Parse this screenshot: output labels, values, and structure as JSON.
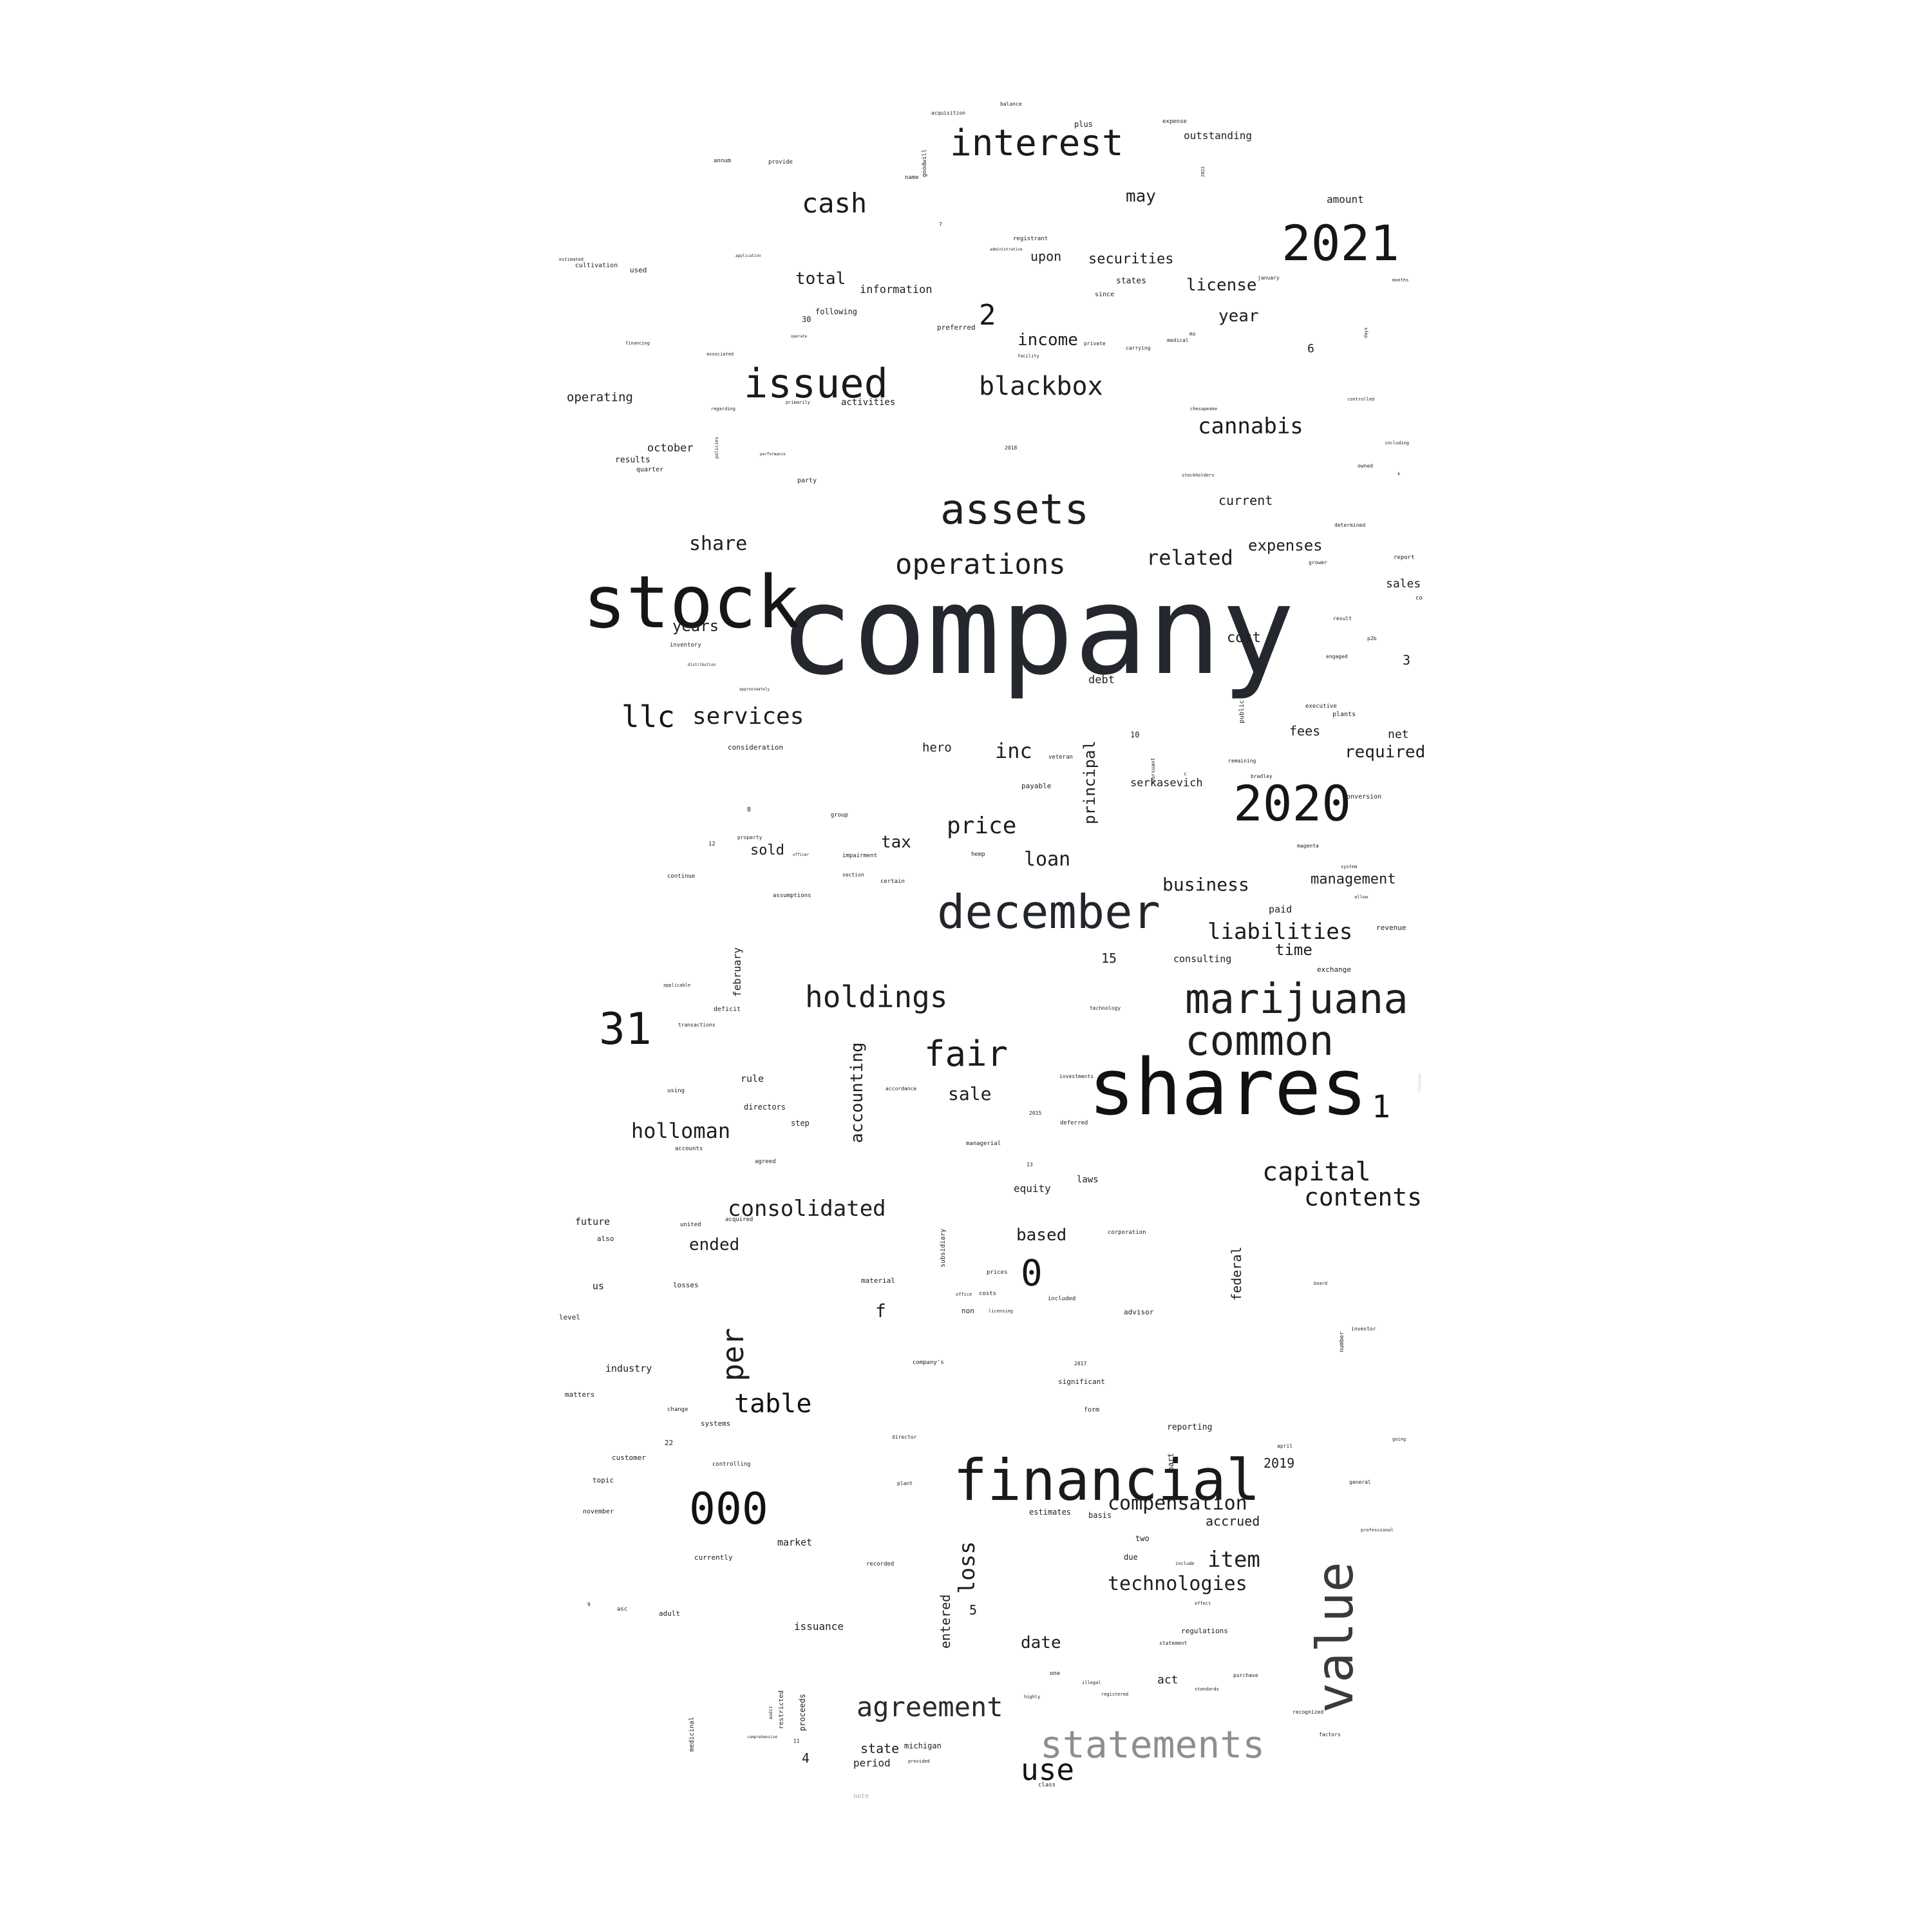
{
  "word_cloud": {
    "words": [
      {
        "text": "company"
      },
      {
        "text": "shares"
      },
      {
        "text": "stock"
      },
      {
        "text": "financial"
      },
      {
        "text": "value"
      },
      {
        "text": "december"
      },
      {
        "text": "marijuana"
      },
      {
        "text": "assets"
      },
      {
        "text": "2021"
      },
      {
        "text": "common"
      },
      {
        "text": "2020"
      },
      {
        "text": "statements"
      },
      {
        "text": "interest"
      },
      {
        "text": "issued"
      },
      {
        "text": "000"
      },
      {
        "text": "31"
      },
      {
        "text": "operations"
      },
      {
        "text": "holdings"
      },
      {
        "text": "fair"
      },
      {
        "text": "agreement"
      },
      {
        "text": "table"
      },
      {
        "text": "llc"
      },
      {
        "text": "blackbox"
      },
      {
        "text": "cash"
      },
      {
        "text": "use"
      },
      {
        "text": "capital"
      },
      {
        "text": "contents"
      },
      {
        "text": "consolidated"
      },
      {
        "text": "services"
      },
      {
        "text": "cannabis"
      },
      {
        "text": "liabilities"
      },
      {
        "text": "related"
      },
      {
        "text": "price"
      },
      {
        "text": "compensation"
      },
      {
        "text": "technologies"
      },
      {
        "text": "item"
      },
      {
        "text": "per"
      },
      {
        "text": "loss"
      },
      {
        "text": "holloman"
      },
      {
        "text": "share"
      },
      {
        "text": "business"
      },
      {
        "text": "loan"
      },
      {
        "text": "inc"
      },
      {
        "text": "0"
      },
      {
        "text": "1"
      },
      {
        "text": "2"
      },
      {
        "text": "accounting"
      },
      {
        "text": "sale"
      },
      {
        "text": "may"
      },
      {
        "text": "total"
      },
      {
        "text": "license"
      },
      {
        "text": "year"
      },
      {
        "text": "income"
      },
      {
        "text": "securities"
      },
      {
        "text": "expenses"
      },
      {
        "text": "current"
      },
      {
        "text": "years"
      },
      {
        "text": "cost"
      },
      {
        "text": "required"
      },
      {
        "text": "management"
      },
      {
        "text": "time"
      },
      {
        "text": "tax"
      },
      {
        "text": "sold"
      },
      {
        "text": "date"
      },
      {
        "text": "ended"
      },
      {
        "text": "based"
      },
      {
        "text": "accrued"
      },
      {
        "text": "principal"
      },
      {
        "text": "federal"
      },
      {
        "text": "entered"
      },
      {
        "text": "upon"
      },
      {
        "text": "information"
      },
      {
        "text": "operating"
      },
      {
        "text": "october"
      },
      {
        "text": "hero"
      },
      {
        "text": "fees"
      },
      {
        "text": "net"
      },
      {
        "text": "debt"
      },
      {
        "text": "serkasevich"
      },
      {
        "text": "sales"
      },
      {
        "text": "equity"
      },
      {
        "text": "industry"
      },
      {
        "text": "market"
      },
      {
        "text": "issuance"
      },
      {
        "text": "state"
      },
      {
        "text": "period"
      },
      {
        "text": "act"
      },
      {
        "text": "2019"
      },
      {
        "text": "february"
      },
      {
        "text": "outstanding"
      },
      {
        "text": "amount"
      },
      {
        "text": "following"
      },
      {
        "text": "activities"
      },
      {
        "text": "results"
      },
      {
        "text": "consulting"
      },
      {
        "text": "paid"
      },
      {
        "text": "reporting"
      },
      {
        "text": "significant"
      },
      {
        "text": "estimates"
      },
      {
        "text": "basis"
      },
      {
        "text": "two"
      },
      {
        "text": "due"
      },
      {
        "text": "regulations"
      },
      {
        "text": "michigan"
      },
      {
        "text": "f"
      },
      {
        "text": "3"
      },
      {
        "text": "4"
      },
      {
        "text": "5"
      },
      {
        "text": "6"
      },
      {
        "text": "15"
      },
      {
        "text": "laws"
      },
      {
        "text": "rule"
      },
      {
        "text": "directors"
      },
      {
        "text": "step"
      },
      {
        "text": "future"
      },
      {
        "text": "also"
      },
      {
        "text": "us"
      },
      {
        "text": "losses"
      },
      {
        "text": "material"
      },
      {
        "text": "non"
      },
      {
        "text": "costs"
      },
      {
        "text": "advisor"
      },
      {
        "text": "matters"
      },
      {
        "text": "level"
      },
      {
        "text": "customer"
      },
      {
        "text": "topic"
      },
      {
        "text": "november"
      },
      {
        "text": "currently"
      },
      {
        "text": "adult"
      },
      {
        "text": "subsidiary"
      },
      {
        "text": "proceeds"
      },
      {
        "text": "restricted"
      },
      {
        "text": "medicinal"
      },
      {
        "text": "note"
      },
      {
        "text": "class"
      },
      {
        "text": "form"
      },
      {
        "text": "revenue"
      },
      {
        "text": "exchange"
      },
      {
        "text": "conversion"
      },
      {
        "text": "plants"
      },
      {
        "text": "executive"
      },
      {
        "text": "public"
      },
      {
        "text": "payable"
      },
      {
        "text": "veteran"
      },
      {
        "text": "hemp"
      },
      {
        "text": "group"
      },
      {
        "text": "impairment"
      },
      {
        "text": "consideration"
      },
      {
        "text": "inventory"
      },
      {
        "text": "quarter"
      },
      {
        "text": "cultivation"
      },
      {
        "text": "used"
      },
      {
        "text": "states"
      },
      {
        "text": "since"
      },
      {
        "text": "preferred"
      },
      {
        "text": "registrant"
      },
      {
        "text": "acquisition"
      },
      {
        "text": "balance"
      },
      {
        "text": "plus"
      },
      {
        "text": "expense"
      },
      {
        "text": "goodwill"
      },
      {
        "text": "name"
      },
      {
        "text": "annum"
      },
      {
        "text": "provide"
      },
      {
        "text": "30"
      },
      {
        "text": "party"
      },
      {
        "text": "certain"
      },
      {
        "text": "section"
      },
      {
        "text": "assumptions"
      },
      {
        "text": "continue"
      },
      {
        "text": "deficit"
      },
      {
        "text": "transactions"
      },
      {
        "text": "using"
      },
      {
        "text": "accounts"
      },
      {
        "text": "agreed"
      },
      {
        "text": "acquired"
      },
      {
        "text": "united"
      },
      {
        "text": "systems"
      },
      {
        "text": "change"
      },
      {
        "text": "22"
      },
      {
        "text": "controlling"
      },
      {
        "text": "recorded"
      },
      {
        "text": "investments"
      },
      {
        "text": "accordance"
      },
      {
        "text": "technology"
      },
      {
        "text": "managerial"
      },
      {
        "text": "deferred"
      },
      {
        "text": "2015"
      },
      {
        "text": "2017"
      },
      {
        "text": "2018"
      },
      {
        "text": "10"
      },
      {
        "text": "12"
      },
      {
        "text": "8"
      },
      {
        "text": "9"
      },
      {
        "text": "11"
      },
      {
        "text": "13"
      },
      {
        "text": "asc"
      },
      {
        "text": "corporation"
      },
      {
        "text": "included"
      },
      {
        "text": "prices"
      },
      {
        "text": "company's"
      },
      {
        "text": "statement"
      },
      {
        "text": "one"
      },
      {
        "text": "purchase"
      },
      {
        "text": "recognized"
      },
      {
        "text": "factors"
      },
      {
        "text": "general"
      },
      {
        "text": "professional"
      },
      {
        "text": "going"
      },
      {
        "text": "board"
      },
      {
        "text": "investor"
      },
      {
        "text": "number"
      },
      {
        "text": "bradley"
      },
      {
        "text": "remaining"
      },
      {
        "text": "magenta"
      },
      {
        "text": "system"
      },
      {
        "text": "allow"
      },
      {
        "text": "engaged"
      },
      {
        "text": "p2b"
      },
      {
        "text": "result"
      },
      {
        "text": "report"
      },
      {
        "text": "co"
      },
      {
        "text": "grower"
      },
      {
        "text": "determined"
      },
      {
        "text": "owned"
      },
      {
        "text": "including"
      },
      {
        "text": "controlled"
      },
      {
        "text": "months"
      },
      {
        "text": "days"
      },
      {
        "text": "k"
      },
      {
        "text": "stockholders"
      },
      {
        "text": "chesapeake"
      },
      {
        "text": "medical"
      },
      {
        "text": "carrying"
      },
      {
        "text": "private"
      },
      {
        "text": "facility"
      },
      {
        "text": "january"
      },
      {
        "text": "2022"
      },
      {
        "text": "pursuant"
      },
      {
        "text": "financing"
      },
      {
        "text": "associated"
      },
      {
        "text": "regarding"
      },
      {
        "text": "primarily"
      },
      {
        "text": "policies"
      },
      {
        "text": "performance"
      },
      {
        "text": "estimated"
      },
      {
        "text": "operate"
      },
      {
        "text": "application"
      },
      {
        "text": "administrative"
      },
      {
        "text": "distribution"
      },
      {
        "text": "approximately"
      },
      {
        "text": "officer"
      },
      {
        "text": "property"
      },
      {
        "text": "applicable"
      },
      {
        "text": "licenses"
      },
      {
        "text": "part"
      },
      {
        "text": "april"
      },
      {
        "text": "7"
      },
      {
        "text": "ms"
      },
      {
        "text": "c"
      },
      {
        "text": "plant"
      },
      {
        "text": "director"
      },
      {
        "text": "office"
      },
      {
        "text": "licensing"
      },
      {
        "text": "include"
      },
      {
        "text": "effect"
      },
      {
        "text": "standards"
      },
      {
        "text": "registered"
      },
      {
        "text": "highly"
      },
      {
        "text": "illegal"
      },
      {
        "text": "comprehensive"
      },
      {
        "text": "audit"
      },
      {
        "text": "provided"
      }
    ]
  }
}
